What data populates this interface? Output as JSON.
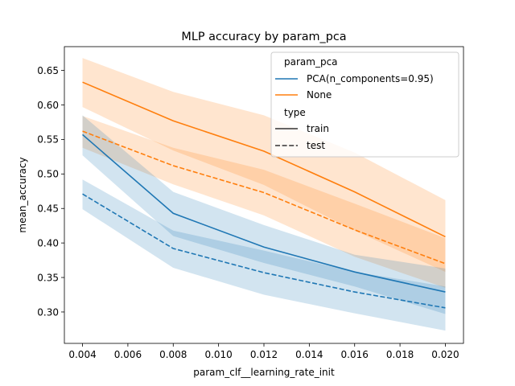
{
  "chart_data": {
    "type": "line",
    "title": "MLP accuracy by param_pca",
    "xlabel": "param_clf__learning_rate_init",
    "ylabel": "mean_accuracy",
    "xlim": [
      0.0032,
      0.0208
    ],
    "ylim": [
      0.2545,
      0.6845
    ],
    "xticks": [
      0.004,
      0.006,
      0.008,
      0.01,
      0.012,
      0.014,
      0.016,
      0.018,
      0.02
    ],
    "xtick_labels": [
      "0.004",
      "0.006",
      "0.008",
      "0.010",
      "0.012",
      "0.014",
      "0.016",
      "0.018",
      "0.020"
    ],
    "yticks": [
      0.3,
      0.35,
      0.4,
      0.45,
      0.5,
      0.55,
      0.6,
      0.65
    ],
    "ytick_labels": [
      "0.30",
      "0.35",
      "0.40",
      "0.45",
      "0.50",
      "0.55",
      "0.60",
      "0.65"
    ],
    "grid": false,
    "legend": {
      "placement": "top-right",
      "hue_title": "param_pca",
      "style_title": "type",
      "hue_entries": [
        {
          "label": "PCA(n_components=0.95)",
          "color": "#1f77b4"
        },
        {
          "label": "None",
          "color": "#ff7f0e"
        }
      ],
      "style_entries": [
        {
          "label": "train",
          "dash": "solid"
        },
        {
          "label": "test",
          "dash": "dashed"
        }
      ]
    },
    "x": [
      0.004,
      0.008,
      0.012,
      0.016,
      0.02
    ],
    "series": [
      {
        "hue": "None",
        "type": "train",
        "color": "#ff7f0e",
        "dashed": false,
        "mean": [
          0.633,
          0.577,
          0.533,
          0.474,
          0.409
        ],
        "lower": [
          0.597,
          0.534,
          0.484,
          0.418,
          0.358
        ],
        "upper": [
          0.668,
          0.619,
          0.585,
          0.531,
          0.462
        ]
      },
      {
        "hue": "None",
        "type": "test",
        "color": "#ff7f0e",
        "dashed": true,
        "mean": [
          0.562,
          0.512,
          0.473,
          0.419,
          0.37
        ],
        "lower": [
          0.538,
          0.485,
          0.44,
          0.38,
          0.335
        ],
        "upper": [
          0.584,
          0.538,
          0.506,
          0.457,
          0.407
        ]
      },
      {
        "hue": "PCA(n_components=0.95)",
        "type": "train",
        "color": "#1f77b4",
        "dashed": false,
        "mean": [
          0.557,
          0.443,
          0.394,
          0.358,
          0.329
        ],
        "lower": [
          0.527,
          0.41,
          0.371,
          0.337,
          0.297
        ],
        "upper": [
          0.585,
          0.474,
          0.426,
          0.383,
          0.363
        ]
      },
      {
        "hue": "PCA(n_components=0.95)",
        "type": "test",
        "color": "#1f77b4",
        "dashed": true,
        "mean": [
          0.471,
          0.392,
          0.357,
          0.329,
          0.306
        ],
        "lower": [
          0.449,
          0.364,
          0.325,
          0.298,
          0.273
        ],
        "upper": [
          0.492,
          0.418,
          0.389,
          0.358,
          0.337
        ]
      }
    ]
  }
}
